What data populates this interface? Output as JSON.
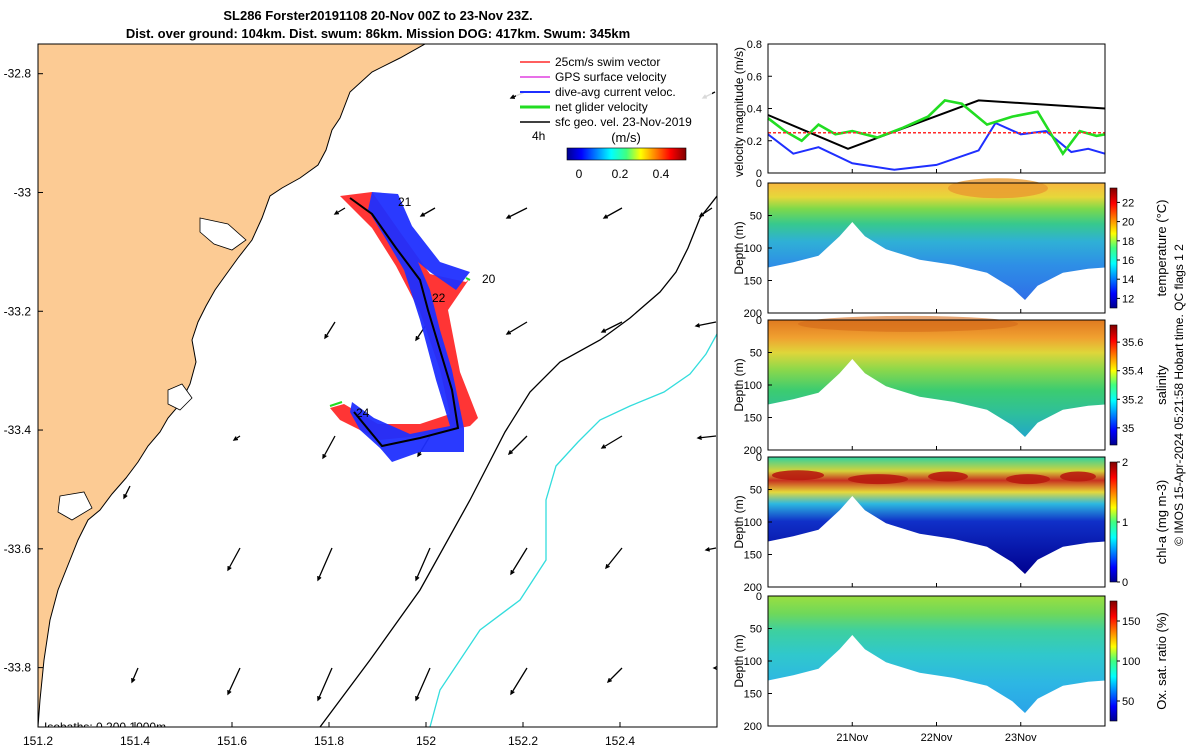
{
  "chart_data": [
    {
      "type": "map",
      "title_line1": "SL286 Forster20191108 20-Nov 00Z to 23-Nov 23Z.",
      "title_line2": "Dist. over ground: 104km. Dist. swum: 86km. Mission DOG: 417km. Swum: 345km",
      "xlim": [
        151.2,
        152.6
      ],
      "ylim": [
        -33.9,
        -32.75
      ],
      "x_ticks": [
        "151.2",
        "151.4",
        "151.6",
        "151.8",
        "152",
        "152.2",
        "152.4"
      ],
      "x_tick_values": [
        151.2,
        151.4,
        151.6,
        151.8,
        152.0,
        152.2,
        152.4
      ],
      "y_ticks": [
        "-32.8",
        "-33",
        "-33.2",
        "-33.4",
        "-33.6",
        "-33.8"
      ],
      "y_tick_values": [
        -32.8,
        -33.0,
        -33.2,
        -33.4,
        -33.6,
        -33.8
      ],
      "legend": [
        {
          "label": "25cm/s swim vector",
          "color": "#ff2a2a"
        },
        {
          "label": "GPS surface velocity",
          "color": "#e040e0"
        },
        {
          "label": "dive-avg current veloc.",
          "color": "#1f2fff"
        },
        {
          "label": "net glider velocity",
          "color": "#22dd22"
        },
        {
          "label": "sfc geo. vel. 23-Nov-2019",
          "color": "#000000"
        }
      ],
      "legend_extra": "4h",
      "colorbar_title": "(m/s)",
      "colorbar_ticks": [
        "0",
        "0.2",
        "0.4"
      ],
      "track": [
        [
          151.82,
          -33.0
        ],
        [
          151.86,
          -33.08
        ],
        [
          151.92,
          -33.14
        ],
        [
          151.96,
          -33.2
        ],
        [
          152.0,
          -33.3
        ],
        [
          152.02,
          -33.38
        ],
        [
          151.98,
          -33.42
        ],
        [
          151.91,
          -33.43
        ],
        [
          151.84,
          -33.37
        ]
      ],
      "day_labels": [
        {
          "text": "20",
          "lon": 152.08,
          "lat": -33.12
        },
        {
          "text": "21",
          "lon": 151.93,
          "lat": -33.0
        },
        {
          "text": "22",
          "lon": 151.97,
          "lat": -33.18
        },
        {
          "text": "24",
          "lon": 151.83,
          "lat": -33.36
        }
      ],
      "depth_text": "Isobaths: 0   200  1000m"
    },
    {
      "type": "line",
      "ylabel": "velocity magnitude (m/s)",
      "ylim": [
        0,
        0.8
      ],
      "y_ticks": [
        "0",
        "0.2",
        "0.4",
        "0.6",
        "0.8"
      ],
      "y_tick_values": [
        0,
        0.2,
        0.4,
        0.6,
        0.8
      ],
      "x_ticks": [
        "21Nov",
        "22Nov",
        "23Nov"
      ],
      "x_tick_values": [
        1,
        2,
        3
      ],
      "xlim": [
        0,
        4
      ],
      "series": [
        {
          "color": "#000000",
          "x": [
            0,
            0.95,
            2.5,
            4
          ],
          "values": [
            0.36,
            0.15,
            0.45,
            0.4
          ]
        },
        {
          "color": "#1f2fff",
          "x": [
            0,
            0.3,
            0.6,
            1.0,
            1.5,
            2.0,
            2.5,
            2.7,
            3.0,
            3.3,
            3.6,
            3.8,
            4.0
          ],
          "values": [
            0.24,
            0.12,
            0.16,
            0.06,
            0.02,
            0.05,
            0.14,
            0.31,
            0.24,
            0.26,
            0.13,
            0.15,
            0.12
          ]
        },
        {
          "color": "#22dd22",
          "x": [
            0,
            0.2,
            0.4,
            0.6,
            0.8,
            1.0,
            1.3,
            1.6,
            1.9,
            2.1,
            2.3,
            2.6,
            2.9,
            3.2,
            3.5,
            3.7,
            3.9,
            4.0
          ],
          "values": [
            0.34,
            0.26,
            0.2,
            0.3,
            0.24,
            0.26,
            0.22,
            0.28,
            0.35,
            0.45,
            0.43,
            0.3,
            0.35,
            0.38,
            0.12,
            0.26,
            0.23,
            0.24
          ]
        },
        {
          "color": "#ff2a2a",
          "x": [
            0,
            4
          ],
          "values": [
            0.25,
            0.25
          ]
        }
      ]
    },
    {
      "type": "heatmap",
      "ylabel": "Depth (m)",
      "cbar_label": "temperature (°C)",
      "ylim": [
        200,
        0
      ],
      "y_ticks": [
        "0",
        "50",
        "100",
        "150",
        "200"
      ],
      "y_tick_values": [
        0,
        50,
        100,
        150,
        200
      ],
      "cbar_ticks": [
        "12",
        "14",
        "16",
        "18",
        "20",
        "22"
      ],
      "cbar_tick_values": [
        12,
        14,
        16,
        18,
        20,
        22
      ],
      "cbar_range": [
        11,
        23.5
      ]
    },
    {
      "type": "heatmap",
      "ylabel": "Depth (m)",
      "cbar_label": "salinity",
      "ylim": [
        200,
        0
      ],
      "y_ticks": [
        "0",
        "50",
        "100",
        "150",
        "200"
      ],
      "y_tick_values": [
        0,
        50,
        100,
        150,
        200
      ],
      "cbar_ticks": [
        "35",
        "35.2",
        "35.4",
        "35.6"
      ],
      "cbar_tick_values": [
        35.0,
        35.2,
        35.4,
        35.6
      ],
      "cbar_range": [
        34.88,
        35.72
      ]
    },
    {
      "type": "heatmap",
      "ylabel": "Depth (m)",
      "cbar_label": "chl-a (mg m-3)",
      "ylim": [
        200,
        0
      ],
      "y_ticks": [
        "0",
        "50",
        "100",
        "150",
        "200"
      ],
      "y_tick_values": [
        0,
        50,
        100,
        150,
        200
      ],
      "cbar_ticks": [
        "0",
        "1",
        "2"
      ],
      "cbar_tick_values": [
        0,
        1,
        2
      ],
      "cbar_range": [
        0,
        2
      ]
    },
    {
      "type": "heatmap",
      "ylabel": "Depth (m)",
      "cbar_label": "Ox. sat. ratio (%)",
      "ylim": [
        200,
        0
      ],
      "y_ticks": [
        "0",
        "50",
        "100",
        "150",
        "200"
      ],
      "y_tick_values": [
        0,
        50,
        100,
        150,
        200
      ],
      "x_ticks": [
        "21Nov",
        "22Nov",
        "23Nov"
      ],
      "x_tick_values": [
        1,
        2,
        3
      ],
      "cbar_ticks": [
        "50",
        "100",
        "150"
      ],
      "cbar_tick_values": [
        50,
        100,
        150
      ],
      "cbar_range": [
        25,
        175
      ]
    }
  ],
  "side_note": "© IMOS 15-Apr-2024 05:21:58 Hobart time. QC flags 1  2",
  "colors": {
    "land": "#fccb94",
    "coast": "#000000",
    "isobath_200": "#000000",
    "isobath_1000": "#33dddd"
  }
}
